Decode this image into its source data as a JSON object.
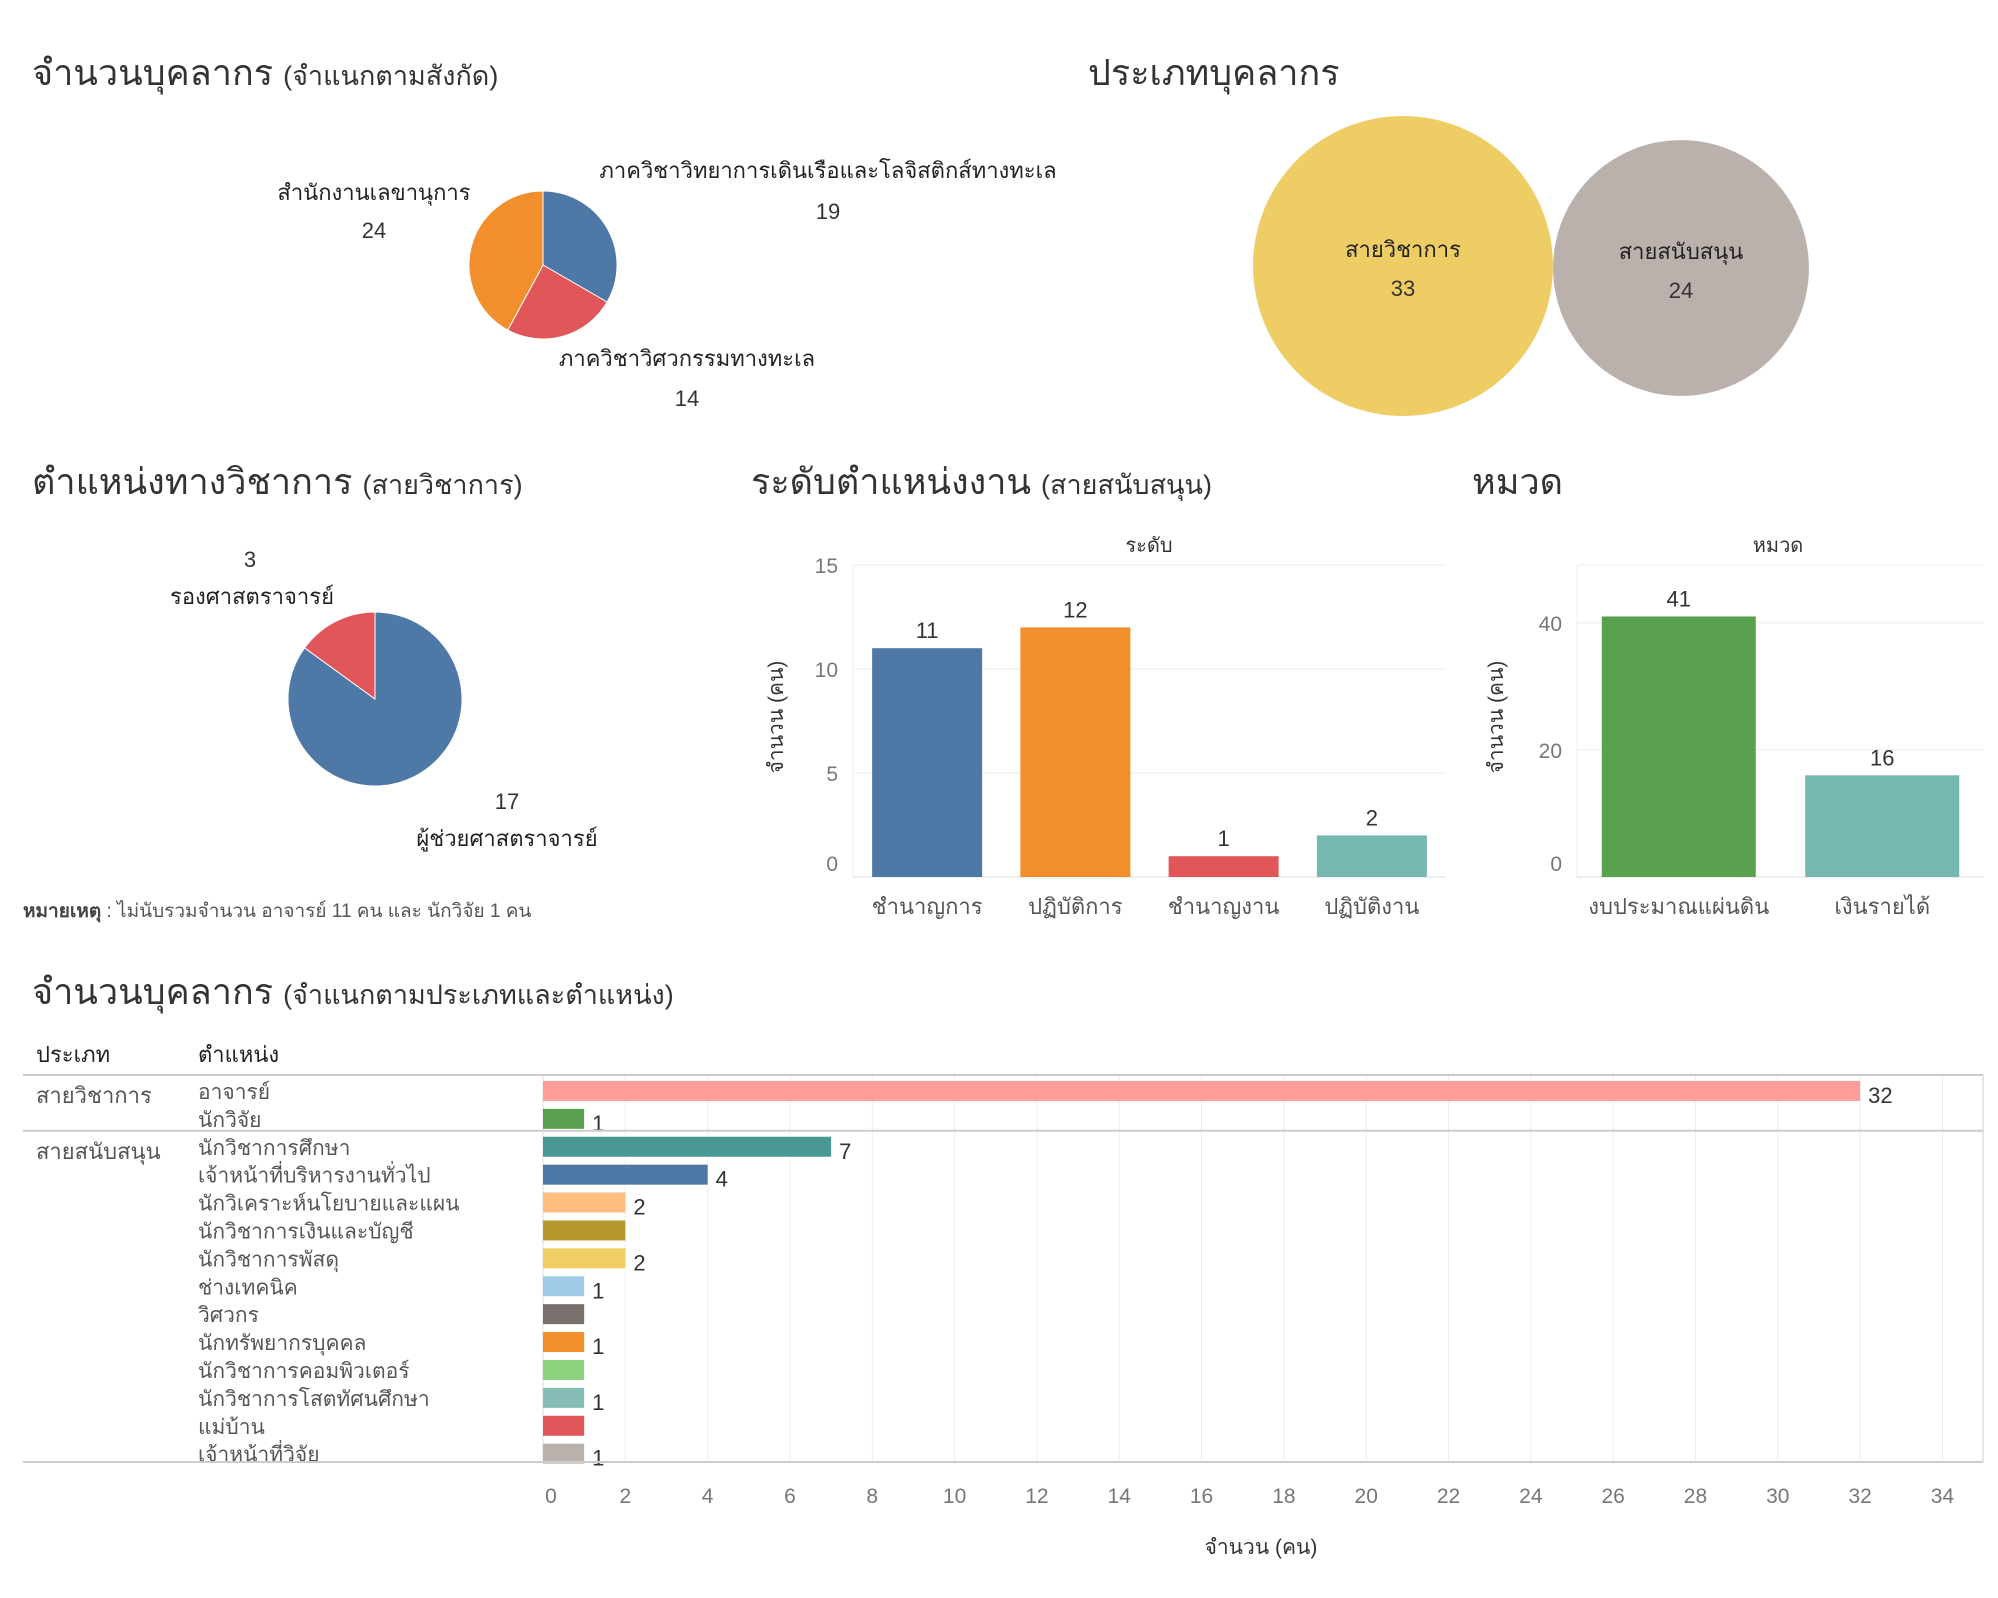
{
  "titles": {
    "affiliation": {
      "main": "จำนวนบุคลากร",
      "sub": "(จำแนกตามสังกัด)"
    },
    "personnel_type": {
      "main": "ประเภทบุคลากร"
    },
    "academic_position": {
      "main": "ตำแหน่งทางวิชาการ",
      "sub": "(สายวิชาการ)"
    },
    "support_level": {
      "main": "ระดับตำแหน่งงาน",
      "sub": "(สายสนับสนุน)"
    },
    "category": {
      "main": "หมวด"
    },
    "by_type_position": {
      "main": "จำนวนบุคลากร",
      "sub": "(จำแนกตามประเภทและตำแหน่ง)"
    }
  },
  "note": {
    "label": "หมายเหตุ",
    "text": " : ไม่นับรวมจำนวน อาจารย์ 11 คน และ นักวิจัย 1 คน"
  },
  "chart_data": [
    {
      "id": "affiliation",
      "type": "pie",
      "slices": [
        {
          "label": "ภาควิชาวิทยาการเดินเรือและโลจิสติกส์ทางทะเล",
          "value": 19,
          "color": "#4e79a7"
        },
        {
          "label": "ภาควิชาวิศวกรรมทางทะเล",
          "value": 14,
          "color": "#e15759"
        },
        {
          "label": "สำนักงานเลขานุการ",
          "value": 24,
          "color": "#f28e2b"
        }
      ]
    },
    {
      "id": "personnel_type",
      "type": "bubble",
      "items": [
        {
          "label": "สายวิชาการ",
          "value": 33,
          "color": "#edcd64"
        },
        {
          "label": "สายสนับสนุน",
          "value": 24,
          "color": "#bab0ac"
        }
      ]
    },
    {
      "id": "academic_position",
      "type": "pie",
      "slices": [
        {
          "label": "ผู้ช่วยศาสตราจารย์",
          "value": 17,
          "color": "#4e79a7"
        },
        {
          "label": "รองศาสตราจารย์",
          "value": 3,
          "color": "#e15759"
        }
      ]
    },
    {
      "id": "support_level",
      "type": "bar",
      "header": "ระดับ",
      "ylabel": "จำนวน (คน)",
      "ylim": [
        0,
        15
      ],
      "yticks": [
        0,
        5,
        10,
        15
      ],
      "grid": true,
      "categories": [
        "ชำนาญการ",
        "ปฏิบัติการ",
        "ชำนาญงาน",
        "ปฏิบัติงาน"
      ],
      "values": [
        11,
        12,
        1,
        2
      ],
      "colors": [
        "#4e79a7",
        "#f28e2b",
        "#e15759",
        "#76b7b2"
      ]
    },
    {
      "id": "category",
      "type": "bar",
      "header": "หมวด",
      "ylabel": "จำนวน (คน)",
      "ylim": [
        0,
        48
      ],
      "yticks": [
        0,
        20,
        40
      ],
      "grid": true,
      "categories": [
        "งบประมาณแผ่นดิน",
        "เงินรายได้"
      ],
      "values": [
        41,
        16
      ],
      "colors": [
        "#59a14f",
        "#76b7b2"
      ]
    },
    {
      "id": "by_type_position",
      "type": "bar",
      "orientation": "horizontal",
      "columns": [
        "ประเภท",
        "ตำแหน่ง"
      ],
      "xlabel": "จำนวน (คน)",
      "xlim": [
        0,
        34
      ],
      "xticks": [
        0,
        2,
        4,
        6,
        8,
        10,
        12,
        14,
        16,
        18,
        20,
        22,
        24,
        26,
        28,
        30,
        32,
        34
      ],
      "grid": true,
      "groups": [
        {
          "name": "สายวิชาการ",
          "rows": [
            {
              "label": "อาจารย์",
              "value": 32,
              "color": "#ff9d9a",
              "show_label": true
            },
            {
              "label": "นักวิจัย",
              "value": 1,
              "color": "#59a14f",
              "show_label": true
            }
          ]
        },
        {
          "name": "สายสนับสนุน",
          "rows": [
            {
              "label": "นักวิชาการศึกษา",
              "value": 7,
              "color": "#499894",
              "show_label": true
            },
            {
              "label": "เจ้าหน้าที่บริหารงานทั่วไป",
              "value": 4,
              "color": "#4e79a7",
              "show_label": true
            },
            {
              "label": "นักวิเคราะห์นโยบายและแผน",
              "value": 2,
              "color": "#ffbe7d",
              "show_label": true
            },
            {
              "label": "นักวิชาการเงินและบัญชี",
              "value": 2,
              "color": "#b6992d",
              "show_label": false
            },
            {
              "label": "นักวิชาการพัสดุ",
              "value": 2,
              "color": "#f1ce63",
              "show_label": true
            },
            {
              "label": "ช่างเทคนิค",
              "value": 1,
              "color": "#a0cbe8",
              "show_label": true
            },
            {
              "label": "วิศวกร",
              "value": 1,
              "color": "#79706e",
              "show_label": false
            },
            {
              "label": "นักทรัพยากรบุคคล",
              "value": 1,
              "color": "#f28e2b",
              "show_label": true
            },
            {
              "label": "นักวิชาการคอมพิวเตอร์",
              "value": 1,
              "color": "#8cd17d",
              "show_label": false
            },
            {
              "label": "นักวิชาการโสตทัศนศึกษา",
              "value": 1,
              "color": "#86bcb6",
              "show_label": true
            },
            {
              "label": "แม่บ้าน",
              "value": 1,
              "color": "#e15759",
              "show_label": false
            },
            {
              "label": "เจ้าหน้าที่วิจัย",
              "value": 1,
              "color": "#bab0ac",
              "show_label": true
            }
          ]
        }
      ]
    }
  ]
}
